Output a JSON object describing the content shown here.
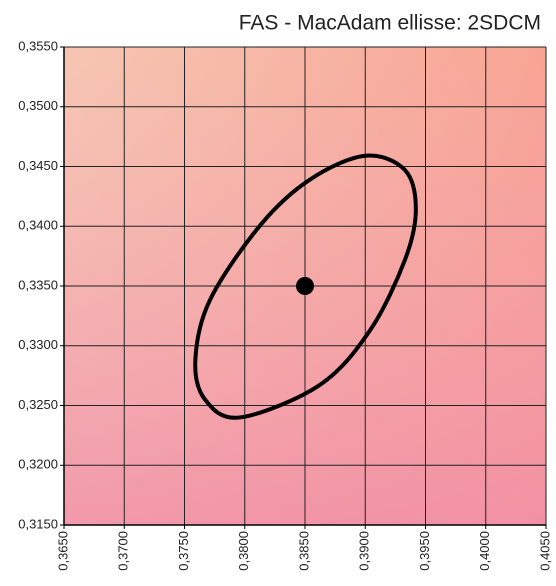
{
  "chart_data": {
    "type": "scatter",
    "title": "FAS - MacAdam ellisse: 2SDCM",
    "xlim": [
      0.365,
      0.405
    ],
    "ylim": [
      0.315,
      0.355
    ],
    "xticks": [
      {
        "value": 0.365,
        "label": "0,3650"
      },
      {
        "value": 0.37,
        "label": "0,3700"
      },
      {
        "value": 0.375,
        "label": "0,3750"
      },
      {
        "value": 0.38,
        "label": "0,3800"
      },
      {
        "value": 0.385,
        "label": "0,3850"
      },
      {
        "value": 0.39,
        "label": "0,3900"
      },
      {
        "value": 0.395,
        "label": "0,3950"
      },
      {
        "value": 0.4,
        "label": "0,4000"
      },
      {
        "value": 0.405,
        "label": "0,4050"
      }
    ],
    "yticks": [
      {
        "value": 0.315,
        "label": "0,3150"
      },
      {
        "value": 0.32,
        "label": "0,3200"
      },
      {
        "value": 0.325,
        "label": "0,3250"
      },
      {
        "value": 0.33,
        "label": "0,3300"
      },
      {
        "value": 0.335,
        "label": "0,3350"
      },
      {
        "value": 0.34,
        "label": "0,3400"
      },
      {
        "value": 0.345,
        "label": "0,3450"
      },
      {
        "value": 0.35,
        "label": "0,3500"
      },
      {
        "value": 0.355,
        "label": "0,3550"
      }
    ],
    "grid": true,
    "series": [
      {
        "type": "line",
        "closed": true,
        "color": "#000000",
        "x": [
          0.39,
          0.3933,
          0.3942,
          0.3933,
          0.3904,
          0.3862,
          0.3796,
          0.3767,
          0.3759,
          0.3771,
          0.3813,
          0.3854
        ],
        "values": [
          0.3459,
          0.3447,
          0.3414,
          0.3372,
          0.3313,
          0.3267,
          0.324,
          0.3255,
          0.3288,
          0.3338,
          0.3401,
          0.3439
        ]
      },
      {
        "type": "point",
        "color": "#000000",
        "x": [
          0.385
        ],
        "values": [
          0.335
        ]
      }
    ]
  }
}
